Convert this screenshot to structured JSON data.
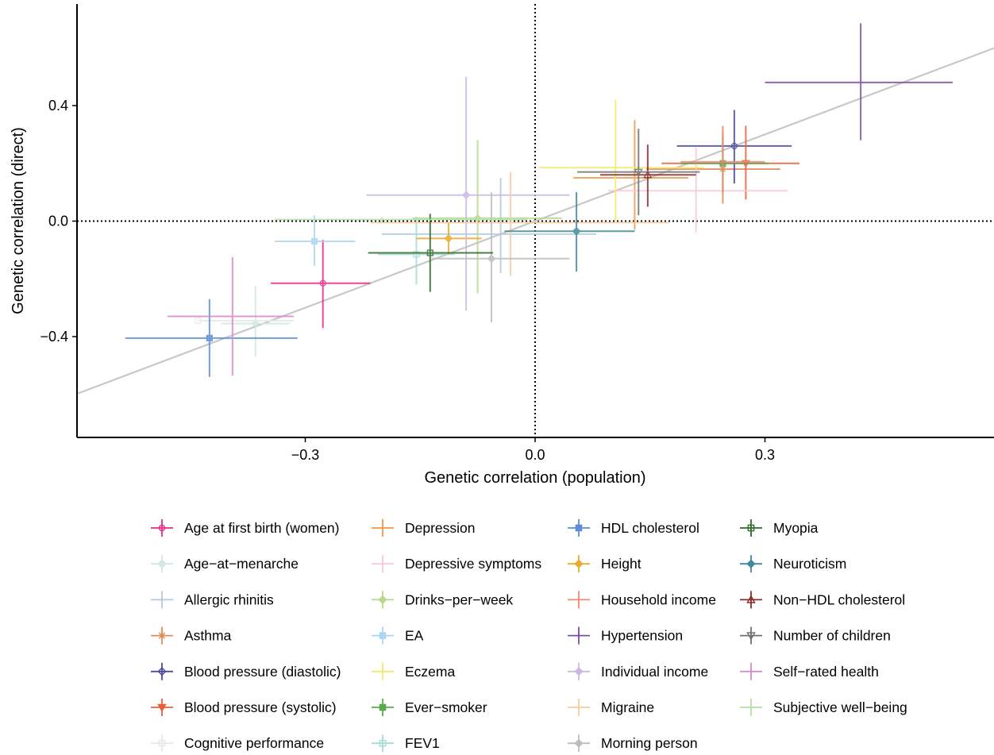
{
  "chart_data": {
    "type": "scatter",
    "xlabel": "Genetic correlation (population)",
    "ylabel": "Genetic correlation (direct)",
    "xlim": [
      -0.6,
      0.6
    ],
    "ylim": [
      -0.75,
      0.75
    ],
    "x_ticks": [
      -0.3,
      0.0,
      0.3
    ],
    "x_tick_labels": [
      "−0.3",
      "0.0",
      "0.3"
    ],
    "y_ticks": [
      -0.4,
      0.0,
      0.4
    ],
    "y_tick_labels": [
      "−0.4",
      "0.0",
      "0.4"
    ],
    "reference_lines": {
      "x": 0,
      "y": 0,
      "style": "dotted"
    },
    "identity_line": {
      "slope": 1,
      "intercept": 0,
      "color": "#c8c8c8"
    },
    "grid": false,
    "legend_position": "bottom",
    "series": [
      {
        "name": "Age at first birth (women)",
        "color": "#e7298a",
        "marker": "circle-open",
        "x": -0.277,
        "xlo": -0.345,
        "xhi": -0.215,
        "y": -0.215,
        "ylo": -0.37,
        "yhi": -0.065
      },
      {
        "name": "Age−at−menarche",
        "color": "#cfe8e0",
        "marker": "circle",
        "x": -0.365,
        "xlo": -0.41,
        "xhi": -0.32,
        "y": -0.355,
        "ylo": -0.47,
        "yhi": -0.225
      },
      {
        "name": "Allergic rhinitis",
        "color": "#b5c9dd",
        "marker": "plus",
        "x": -0.045,
        "xlo": -0.2,
        "xhi": 0.08,
        "y": -0.045,
        "ylo": -0.18,
        "yhi": 0.15
      },
      {
        "name": "Asthma",
        "color": "#e08a57",
        "marker": "asterisk",
        "x": 0.245,
        "xlo": 0.145,
        "xhi": 0.32,
        "y": 0.18,
        "ylo": 0.06,
        "yhi": 0.33
      },
      {
        "name": "Blood pressure (diastolic)",
        "color": "#4a4a9e",
        "marker": "diamond-open",
        "x": 0.26,
        "xlo": 0.185,
        "xhi": 0.335,
        "y": 0.26,
        "ylo": 0.13,
        "yhi": 0.385
      },
      {
        "name": "Blood pressure (systolic)",
        "color": "#e8603a",
        "marker": "triangle-down",
        "x": 0.275,
        "xlo": 0.165,
        "xhi": 0.345,
        "y": 0.2,
        "ylo": 0.075,
        "yhi": 0.33
      },
      {
        "name": "Cognitive performance",
        "color": "#e8e8e8",
        "marker": "square-open",
        "x": -0.44,
        "xlo": -0.44,
        "xhi": -0.315,
        "y": -0.345,
        "ylo": -0.345,
        "yhi": -0.345
      },
      {
        "name": "Depression",
        "color": "#f09a4a",
        "marker": "plus",
        "x": 0.13,
        "xlo": 0.05,
        "xhi": 0.2,
        "y": 0.15,
        "ylo": -0.03,
        "yhi": 0.35
      },
      {
        "name": "Depressive symptoms",
        "color": "#f7c8d6",
        "marker": "plus",
        "x": 0.21,
        "xlo": 0.095,
        "xhi": 0.33,
        "y": 0.105,
        "ylo": -0.04,
        "yhi": 0.255
      },
      {
        "name": "Drinks−per−week",
        "color": "#b8d98c",
        "marker": "diamond",
        "x": -0.075,
        "xlo": -0.16,
        "xhi": 0.035,
        "y": 0.01,
        "ylo": -0.25,
        "yhi": 0.28
      },
      {
        "name": "EA",
        "color": "#a9d6f0",
        "marker": "square",
        "x": -0.288,
        "xlo": -0.34,
        "xhi": -0.235,
        "y": -0.07,
        "ylo": -0.155,
        "yhi": 0.02
      },
      {
        "name": "Eczema",
        "color": "#f2ea6a",
        "marker": "plus",
        "x": 0.105,
        "xlo": 0.005,
        "xhi": 0.22,
        "y": 0.185,
        "ylo": 0.0,
        "yhi": 0.42
      },
      {
        "name": "Ever−smoker",
        "color": "#5aab4e",
        "marker": "square",
        "x": 0.245,
        "xlo": 0.19,
        "xhi": 0.305,
        "y": 0.2,
        "ylo": 0.1,
        "yhi": 0.295
      },
      {
        "name": "FEV1",
        "color": "#a4dcd6",
        "marker": "square-open",
        "x": -0.155,
        "xlo": -0.205,
        "xhi": -0.105,
        "y": -0.115,
        "ylo": -0.22,
        "yhi": 0.015
      },
      {
        "name": "HDL cholesterol",
        "color": "#5b8ed6",
        "marker": "square",
        "x": -0.425,
        "xlo": -0.535,
        "xhi": -0.31,
        "y": -0.405,
        "ylo": -0.54,
        "yhi": -0.27
      },
      {
        "name": "Height",
        "color": "#e8a92c",
        "marker": "diamond",
        "x": -0.113,
        "xlo": -0.155,
        "xhi": -0.07,
        "y": -0.06,
        "ylo": -0.115,
        "yhi": -0.005
      },
      {
        "name": "Household income",
        "color": "#f28a70",
        "marker": "plus",
        "x": 0.245,
        "xlo": 0.19,
        "xhi": 0.3,
        "y": 0.205,
        "ylo": 0.1,
        "yhi": 0.31
      },
      {
        "name": "Hypertension",
        "color": "#7a4ea8",
        "marker": "plus",
        "x": 0.425,
        "xlo": 0.3,
        "xhi": 0.545,
        "y": 0.48,
        "ylo": 0.28,
        "yhi": 0.685
      },
      {
        "name": "Individual income",
        "color": "#cdb8e0",
        "marker": "diamond",
        "x": -0.09,
        "xlo": -0.22,
        "xhi": 0.045,
        "y": 0.09,
        "ylo": -0.31,
        "yhi": 0.5
      },
      {
        "name": "Migraine",
        "color": "#f7cba0",
        "marker": "plus",
        "x": -0.032,
        "xlo": -0.215,
        "xhi": 0.175,
        "y": -0.005,
        "ylo": -0.19,
        "yhi": 0.17
      },
      {
        "name": "Morning person",
        "color": "#bdbdbd",
        "marker": "diamond",
        "x": -0.057,
        "xlo": -0.135,
        "xhi": 0.045,
        "y": -0.13,
        "ylo": -0.35,
        "yhi": 0.1
      },
      {
        "name": "Myopia",
        "color": "#2e6a2a",
        "marker": "square-open",
        "x": -0.137,
        "xlo": -0.218,
        "xhi": -0.055,
        "y": -0.11,
        "ylo": -0.245,
        "yhi": 0.025
      },
      {
        "name": "Neuroticism",
        "color": "#3e8a9a",
        "marker": "diamond",
        "x": 0.054,
        "xlo": -0.04,
        "xhi": 0.13,
        "y": -0.035,
        "ylo": -0.175,
        "yhi": 0.1
      },
      {
        "name": "Non−HDL cholesterol",
        "color": "#8a2a2a",
        "marker": "triangle-open",
        "x": 0.147,
        "xlo": 0.085,
        "xhi": 0.21,
        "y": 0.16,
        "ylo": 0.05,
        "yhi": 0.265
      },
      {
        "name": "Number of children",
        "color": "#707070",
        "marker": "triangle-down-open",
        "x": 0.135,
        "xlo": 0.055,
        "xhi": 0.215,
        "y": 0.17,
        "ylo": 0.02,
        "yhi": 0.32
      },
      {
        "name": "Self−rated health",
        "color": "#d88ac8",
        "marker": "plus",
        "x": -0.395,
        "xlo": -0.48,
        "xhi": -0.315,
        "y": -0.33,
        "ylo": -0.535,
        "yhi": -0.125
      },
      {
        "name": "Subjective well−being",
        "color": "#b5e0a8",
        "marker": "plus",
        "x": -0.2,
        "xlo": -0.34,
        "xhi": -0.01,
        "y": 0.005,
        "ylo": 0.005,
        "yhi": 0.005
      }
    ]
  }
}
